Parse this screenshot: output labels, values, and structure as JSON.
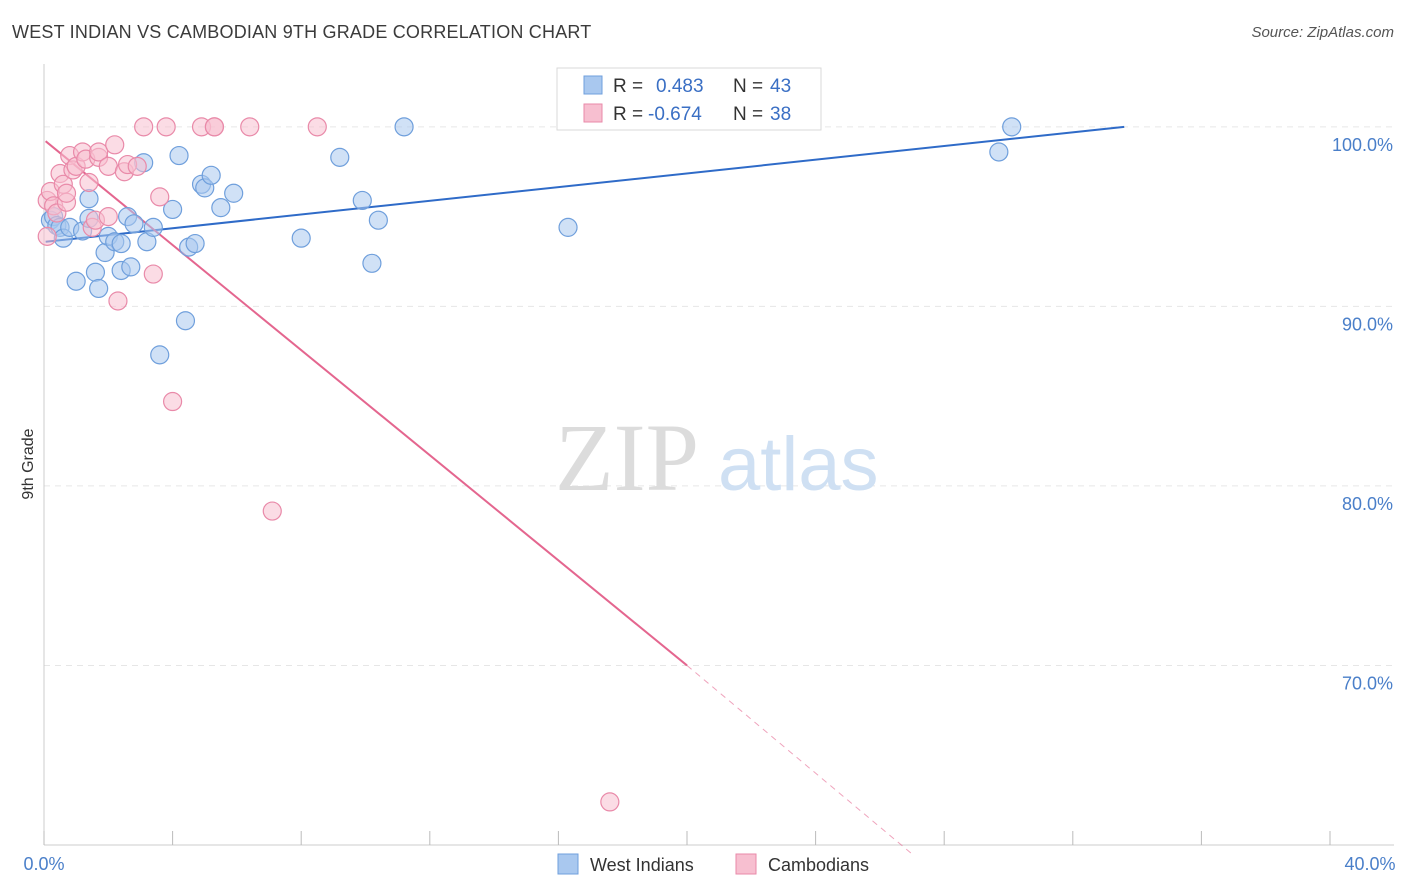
{
  "title": "WEST INDIAN VS CAMBODIAN 9TH GRADE CORRELATION CHART",
  "source": "Source: ZipAtlas.com",
  "watermark": {
    "zip": "ZIP",
    "atlas": "atlas"
  },
  "colors": {
    "blue_fill": "#a9c8ef",
    "blue_stroke": "#6f9fdc",
    "blue_line": "#2f6bc8",
    "pink_fill": "#f7bfd0",
    "pink_stroke": "#e98aa9",
    "pink_line": "#e4668f",
    "tick_label": "#4a7fc9",
    "grid": "#e6e6e6"
  },
  "legend": {
    "rows": [
      {
        "r_label": "R =",
        "r_value": "0.483",
        "n_label": "N =",
        "n_value": "43",
        "series": "blue"
      },
      {
        "r_label": "R =",
        "r_value": "-0.674",
        "n_label": "N =",
        "n_value": "38",
        "series": "pink"
      }
    ]
  },
  "bottom_legend": [
    "West Indians",
    "Cambodians"
  ],
  "chart_data": {
    "type": "scatter",
    "title": "WEST INDIAN VS CAMBODIAN 9TH GRADE CORRELATION CHART",
    "xlabel": "",
    "ylabel": "9th Grade",
    "xlim": [
      0,
      40
    ],
    "ylim": [
      60,
      103.5
    ],
    "x_tick_labels": [
      "0.0%",
      "40.0%"
    ],
    "y_ticks": [
      70,
      80,
      90,
      100
    ],
    "y_tick_labels": [
      "70.0%",
      "80.0%",
      "90.0%",
      "100.0%"
    ],
    "grid": true,
    "legend_position": "top-center",
    "series": [
      {
        "name": "West Indians",
        "color": "blue",
        "trend": {
          "x0": 0.05,
          "y0": 93.6,
          "x1": 33.6,
          "y1": 100.0,
          "dashed_until": null
        },
        "points": [
          [
            0.2,
            94.8
          ],
          [
            0.3,
            95.0
          ],
          [
            0.4,
            94.5
          ],
          [
            0.5,
            94.4
          ],
          [
            0.6,
            93.8
          ],
          [
            0.8,
            94.4
          ],
          [
            1.0,
            91.4
          ],
          [
            1.2,
            94.2
          ],
          [
            1.4,
            94.9
          ],
          [
            1.4,
            96.0
          ],
          [
            1.6,
            91.9
          ],
          [
            1.7,
            91.0
          ],
          [
            1.9,
            93.0
          ],
          [
            2.0,
            93.9
          ],
          [
            2.2,
            93.6
          ],
          [
            2.4,
            93.5
          ],
          [
            2.4,
            92.0
          ],
          [
            2.6,
            95.0
          ],
          [
            2.7,
            92.2
          ],
          [
            2.8,
            94.6
          ],
          [
            3.1,
            98.0
          ],
          [
            3.2,
            93.6
          ],
          [
            3.4,
            94.4
          ],
          [
            3.6,
            87.3
          ],
          [
            4.0,
            95.4
          ],
          [
            4.2,
            98.4
          ],
          [
            4.4,
            89.2
          ],
          [
            4.5,
            93.3
          ],
          [
            4.7,
            93.5
          ],
          [
            4.9,
            96.8
          ],
          [
            5.0,
            96.6
          ],
          [
            5.2,
            97.3
          ],
          [
            5.5,
            95.5
          ],
          [
            5.9,
            96.3
          ],
          [
            8.0,
            93.8
          ],
          [
            9.2,
            98.3
          ],
          [
            9.9,
            95.9
          ],
          [
            10.2,
            92.4
          ],
          [
            10.4,
            94.8
          ],
          [
            11.2,
            100.0
          ],
          [
            16.3,
            94.4
          ],
          [
            29.7,
            98.6
          ],
          [
            30.1,
            100.0
          ]
        ]
      },
      {
        "name": "Cambodians",
        "color": "pink",
        "trend": {
          "x0": 0.05,
          "y0": 99.2,
          "x1": 20.0,
          "y1": 70.0,
          "dashed_x1": 27.0,
          "dashed_y1": 59.5
        },
        "points": [
          [
            0.1,
            93.9
          ],
          [
            0.1,
            95.9
          ],
          [
            0.2,
            96.4
          ],
          [
            0.3,
            95.6
          ],
          [
            0.4,
            95.2
          ],
          [
            0.5,
            97.4
          ],
          [
            0.6,
            96.8
          ],
          [
            0.7,
            95.8
          ],
          [
            0.7,
            96.3
          ],
          [
            0.8,
            98.4
          ],
          [
            0.9,
            97.6
          ],
          [
            1.0,
            97.8
          ],
          [
            1.2,
            98.6
          ],
          [
            1.3,
            98.2
          ],
          [
            1.4,
            96.9
          ],
          [
            1.5,
            94.4
          ],
          [
            1.6,
            94.8
          ],
          [
            1.7,
            98.3
          ],
          [
            1.7,
            98.6
          ],
          [
            2.0,
            95.0
          ],
          [
            2.0,
            97.8
          ],
          [
            2.2,
            99.0
          ],
          [
            2.3,
            90.3
          ],
          [
            2.5,
            97.5
          ],
          [
            2.6,
            97.9
          ],
          [
            2.9,
            97.8
          ],
          [
            3.1,
            100.0
          ],
          [
            3.4,
            91.8
          ],
          [
            3.6,
            96.1
          ],
          [
            3.8,
            100.0
          ],
          [
            4.0,
            84.7
          ],
          [
            4.9,
            100.0
          ],
          [
            5.3,
            100.0
          ],
          [
            6.4,
            100.0
          ],
          [
            7.1,
            78.6
          ],
          [
            8.5,
            100.0
          ],
          [
            17.6,
            62.4
          ],
          [
            5.3,
            100.0
          ]
        ]
      }
    ]
  }
}
